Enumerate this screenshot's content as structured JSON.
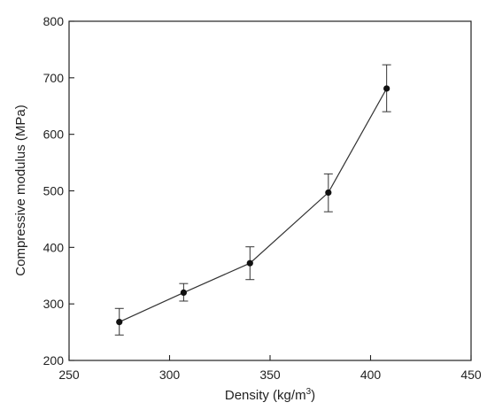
{
  "chart_data": {
    "type": "line",
    "title": "",
    "xlabel_main": "Density (kg/m",
    "xlabel_sup": "3",
    "xlabel_end": ")",
    "ylabel": "Compressive modulus (MPa)",
    "xlim": [
      250,
      450
    ],
    "ylim": [
      200,
      800
    ],
    "xticks": [
      250,
      300,
      350,
      400,
      450
    ],
    "yticks": [
      200,
      300,
      400,
      500,
      600,
      700,
      800
    ],
    "grid": false,
    "series": [
      {
        "x": [
          275,
          307,
          340,
          379,
          408
        ],
        "y": [
          268,
          320,
          372,
          497,
          681
        ],
        "err_low": [
          245,
          305,
          343,
          463,
          640
        ],
        "err_high": [
          292,
          336,
          401,
          530,
          723
        ]
      }
    ],
    "colors": {
      "line": "#333333",
      "marker": "#111111",
      "axis": "#222222"
    }
  }
}
